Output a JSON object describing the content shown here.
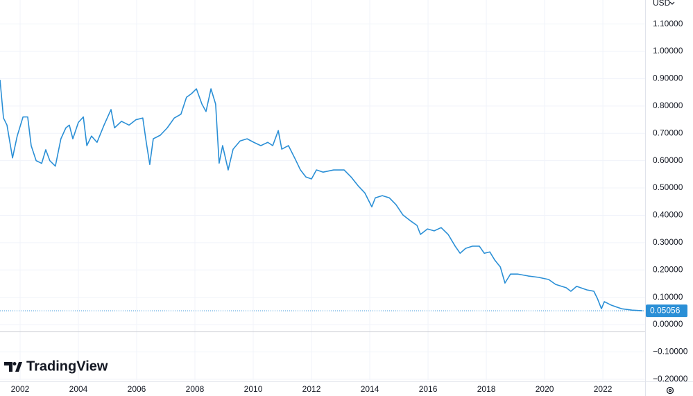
{
  "chart_data": {
    "type": "line",
    "currency": "USD",
    "brand": "TradingView",
    "color": "#2a8fd6",
    "grid": true,
    "last_price": 0.05056,
    "xlim": [
      2001.31,
      2023.45
    ],
    "ylim": [
      -0.203,
      1.188
    ],
    "xticks": [
      2002,
      2004,
      2006,
      2008,
      2010,
      2012,
      2014,
      2016,
      2018,
      2020,
      2022
    ],
    "yticks": [
      {
        "value": -0.2,
        "label": "−0.20000"
      },
      {
        "value": -0.1,
        "label": "−0.10000"
      },
      {
        "value": 0,
        "label": "0.00000"
      },
      {
        "value": 0.1,
        "label": "0.10000"
      },
      {
        "value": 0.2,
        "label": "0.20000"
      },
      {
        "value": 0.3,
        "label": "0.30000"
      },
      {
        "value": 0.4,
        "label": "0.40000"
      },
      {
        "value": 0.5,
        "label": "0.50000"
      },
      {
        "value": 0.6,
        "label": "0.60000"
      },
      {
        "value": 0.7,
        "label": "0.70000"
      },
      {
        "value": 0.8,
        "label": "0.80000"
      },
      {
        "value": 0.9,
        "label": "0.90000"
      },
      {
        "value": 1.0,
        "label": "1.00000"
      },
      {
        "value": 1.1,
        "label": "1.10000"
      }
    ],
    "x": [
      2001.31,
      2001.43,
      2001.55,
      2001.74,
      2001.9,
      2002.1,
      2002.26,
      2002.38,
      2002.55,
      2002.74,
      2002.88,
      2003.02,
      2003.21,
      2003.4,
      2003.57,
      2003.69,
      2003.81,
      2004.0,
      2004.17,
      2004.29,
      2004.45,
      2004.64,
      2004.88,
      2005.12,
      2005.24,
      2005.48,
      2005.74,
      2005.98,
      2006.21,
      2006.33,
      2006.45,
      2006.57,
      2006.81,
      2007.05,
      2007.29,
      2007.52,
      2007.71,
      2007.88,
      2008.05,
      2008.24,
      2008.38,
      2008.55,
      2008.71,
      2008.83,
      2008.95,
      2009.14,
      2009.31,
      2009.55,
      2009.79,
      2010.02,
      2010.26,
      2010.5,
      2010.67,
      2010.86,
      2010.98,
      2011.21,
      2011.45,
      2011.62,
      2011.81,
      2012.0,
      2012.17,
      2012.4,
      2012.76,
      2013.12,
      2013.36,
      2013.6,
      2013.83,
      2014.07,
      2014.19,
      2014.43,
      2014.67,
      2014.9,
      2015.14,
      2015.38,
      2015.62,
      2015.74,
      2015.98,
      2016.21,
      2016.45,
      2016.69,
      2016.93,
      2017.1,
      2017.29,
      2017.52,
      2017.76,
      2017.93,
      2018.12,
      2018.29,
      2018.48,
      2018.64,
      2018.83,
      2019.07,
      2019.43,
      2019.79,
      2020.14,
      2020.38,
      2020.74,
      2020.9,
      2021.1,
      2021.45,
      2021.69,
      2021.81,
      2021.95,
      2022.05,
      2022.29,
      2022.64,
      2023.0,
      2023.36
    ],
    "values": [
      0.896,
      0.756,
      0.73,
      0.61,
      0.69,
      0.76,
      0.76,
      0.655,
      0.6,
      0.59,
      0.64,
      0.6,
      0.58,
      0.68,
      0.72,
      0.73,
      0.68,
      0.74,
      0.76,
      0.655,
      0.69,
      0.667,
      0.73,
      0.787,
      0.72,
      0.744,
      0.73,
      0.75,
      0.756,
      0.667,
      0.586,
      0.68,
      0.693,
      0.72,
      0.756,
      0.77,
      0.832,
      0.845,
      0.863,
      0.807,
      0.78,
      0.863,
      0.807,
      0.591,
      0.655,
      0.566,
      0.642,
      0.672,
      0.68,
      0.667,
      0.655,
      0.667,
      0.655,
      0.71,
      0.642,
      0.655,
      0.604,
      0.566,
      0.54,
      0.533,
      0.566,
      0.558,
      0.566,
      0.566,
      0.54,
      0.508,
      0.482,
      0.431,
      0.464,
      0.472,
      0.464,
      0.439,
      0.401,
      0.381,
      0.363,
      0.33,
      0.35,
      0.343,
      0.355,
      0.33,
      0.287,
      0.261,
      0.279,
      0.287,
      0.287,
      0.261,
      0.266,
      0.236,
      0.211,
      0.152,
      0.185,
      0.185,
      0.178,
      0.173,
      0.165,
      0.147,
      0.135,
      0.122,
      0.14,
      0.127,
      0.122,
      0.096,
      0.058,
      0.084,
      0.071,
      0.058,
      0.053,
      0.05056
    ]
  }
}
